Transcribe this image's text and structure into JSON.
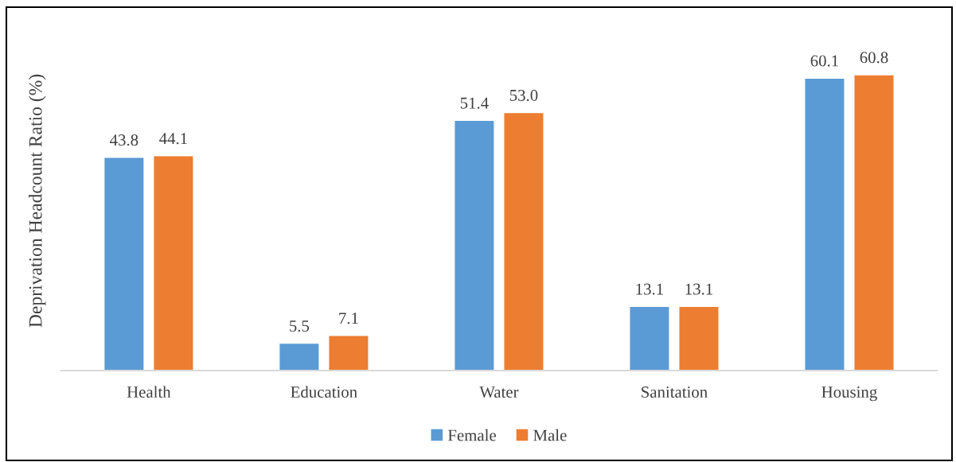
{
  "chart_data": {
    "type": "bar",
    "ylabel": "Deprivation Headcount Ratio (%)",
    "categories": [
      "Health",
      "Education",
      "Water",
      "Sanitation",
      "Housing"
    ],
    "series": [
      {
        "name": "Female",
        "color": "#5b9bd5",
        "values": [
          43.8,
          5.5,
          51.4,
          13.1,
          60.1
        ],
        "value_labels": [
          "43.8",
          "5.5",
          "51.4",
          "13.1",
          "60.1"
        ]
      },
      {
        "name": "Male",
        "color": "#ed7d31",
        "values": [
          44.1,
          7.1,
          53.0,
          13.1,
          60.8
        ],
        "value_labels": [
          "44.1",
          "7.1",
          "53.0",
          "13.1",
          "60.8"
        ]
      }
    ],
    "legend": "bottom",
    "tick_labels": "x"
  }
}
